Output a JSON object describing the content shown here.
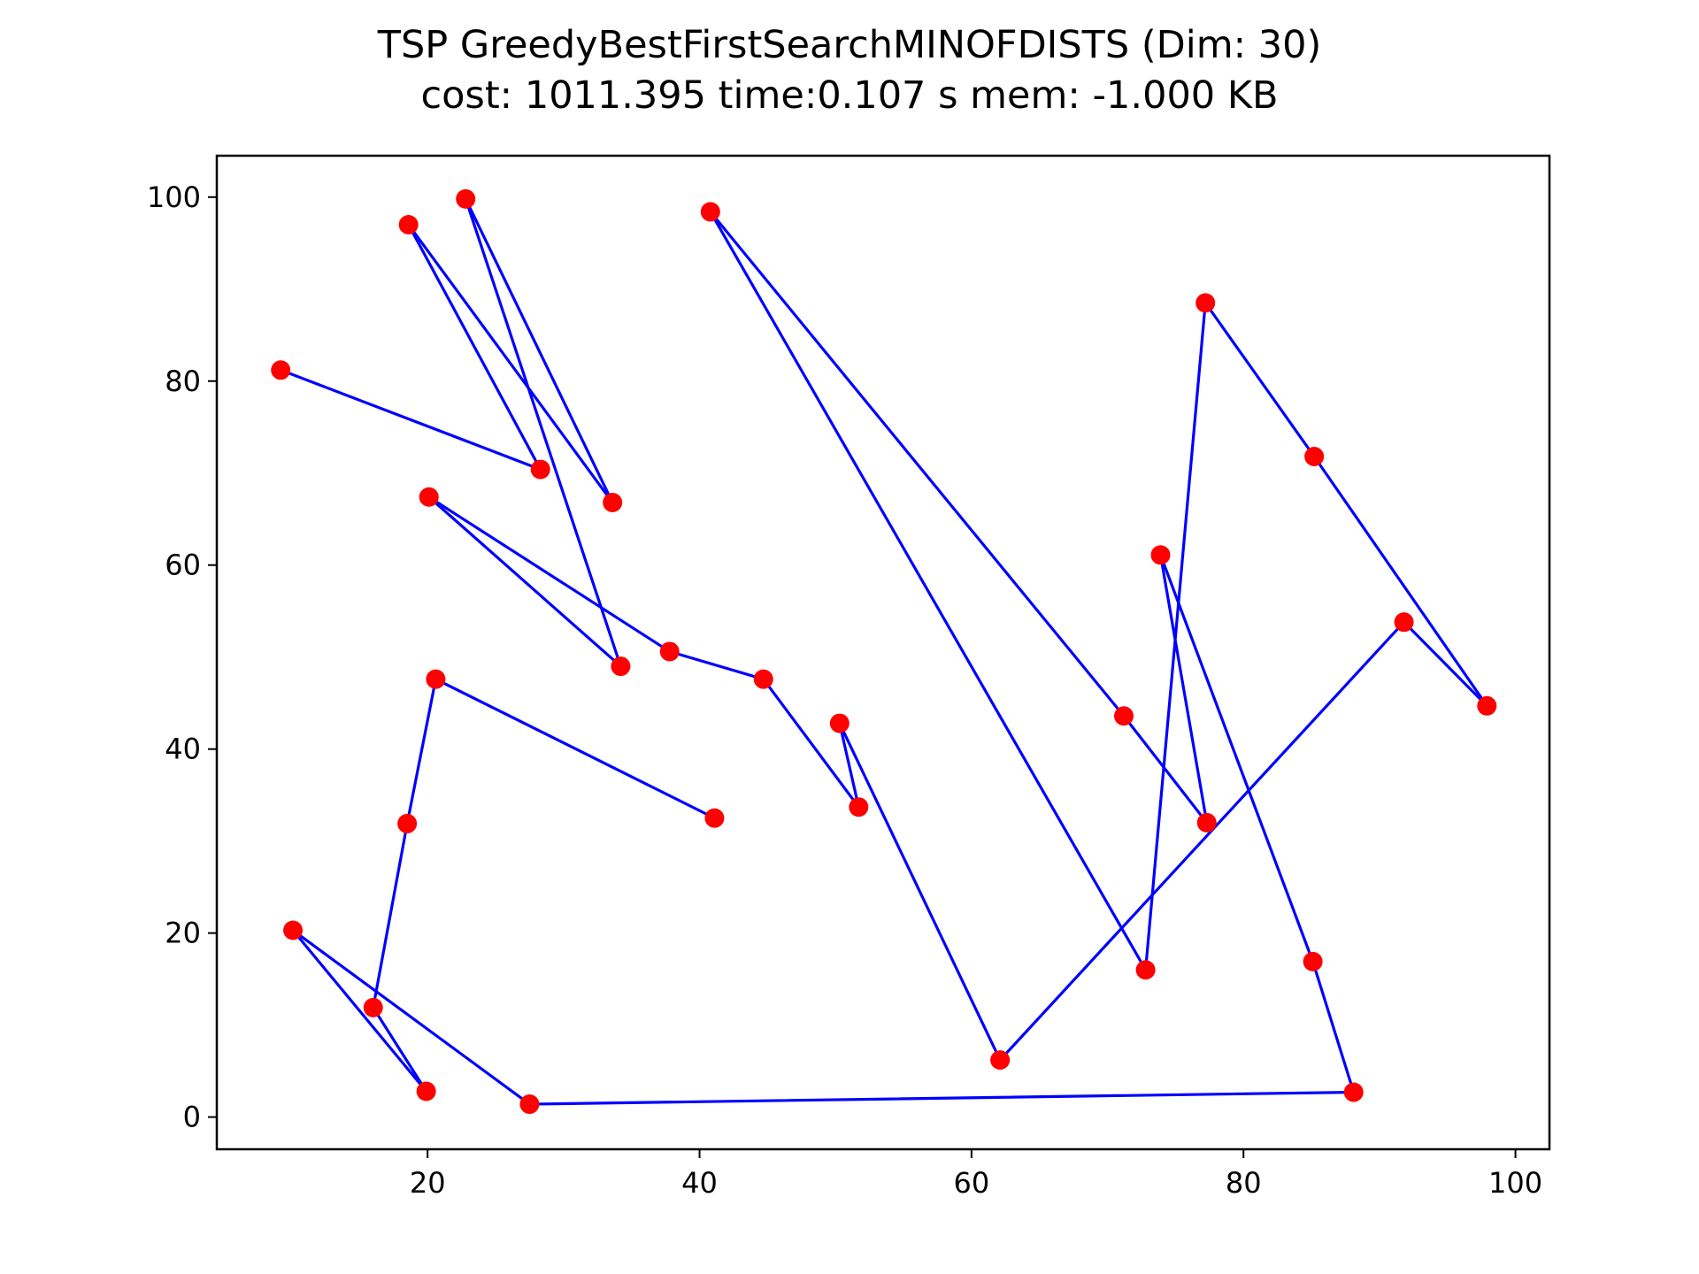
{
  "chart_data": {
    "type": "scatter",
    "title": "TSP GreedyBestFirstSearchMINOFDISTS (Dim: 30)",
    "subtitle": "cost: 1011.395   time:0.107 s   mem: -1.000 KB",
    "xlabel": "",
    "ylabel": "",
    "xlim": [
      4.5,
      102.5
    ],
    "ylim": [
      -3.5,
      104.5
    ],
    "x_ticks": [
      20,
      40,
      60,
      80,
      100
    ],
    "y_ticks": [
      0,
      20,
      40,
      60,
      80,
      100
    ],
    "grid": false,
    "colors": {
      "points": "#ff0000",
      "route": "#0000ff"
    },
    "series": [
      {
        "values": [
          {
            "x": 9.2,
            "y": 81.2
          },
          {
            "x": 28.3,
            "y": 70.4
          },
          {
            "x": 18.6,
            "y": 97.0
          },
          {
            "x": 33.6,
            "y": 66.8
          },
          {
            "x": 22.8,
            "y": 99.8
          },
          {
            "x": 34.2,
            "y": 49.0
          },
          {
            "x": 20.1,
            "y": 67.4
          },
          {
            "x": 37.8,
            "y": 50.6
          },
          {
            "x": 44.7,
            "y": 47.6
          },
          {
            "x": 51.7,
            "y": 33.7
          },
          {
            "x": 50.3,
            "y": 42.8
          },
          {
            "x": 62.1,
            "y": 6.2
          },
          {
            "x": 91.8,
            "y": 53.8
          },
          {
            "x": 97.9,
            "y": 44.7
          },
          {
            "x": 85.2,
            "y": 71.8
          },
          {
            "x": 77.2,
            "y": 88.5
          },
          {
            "x": 72.8,
            "y": 16.0
          },
          {
            "x": 40.8,
            "y": 98.4
          },
          {
            "x": 71.2,
            "y": 43.6
          },
          {
            "x": 77.3,
            "y": 32.0
          },
          {
            "x": 73.9,
            "y": 61.1
          },
          {
            "x": 85.1,
            "y": 16.9
          },
          {
            "x": 88.1,
            "y": 2.7
          },
          {
            "x": 27.5,
            "y": 1.4
          },
          {
            "x": 10.1,
            "y": 20.3
          },
          {
            "x": 19.9,
            "y": 2.8
          },
          {
            "x": 16.0,
            "y": 11.9
          },
          {
            "x": 18.5,
            "y": 31.9
          },
          {
            "x": 20.6,
            "y": 47.6
          },
          {
            "x": 41.1,
            "y": 32.5
          }
        ]
      }
    ]
  }
}
